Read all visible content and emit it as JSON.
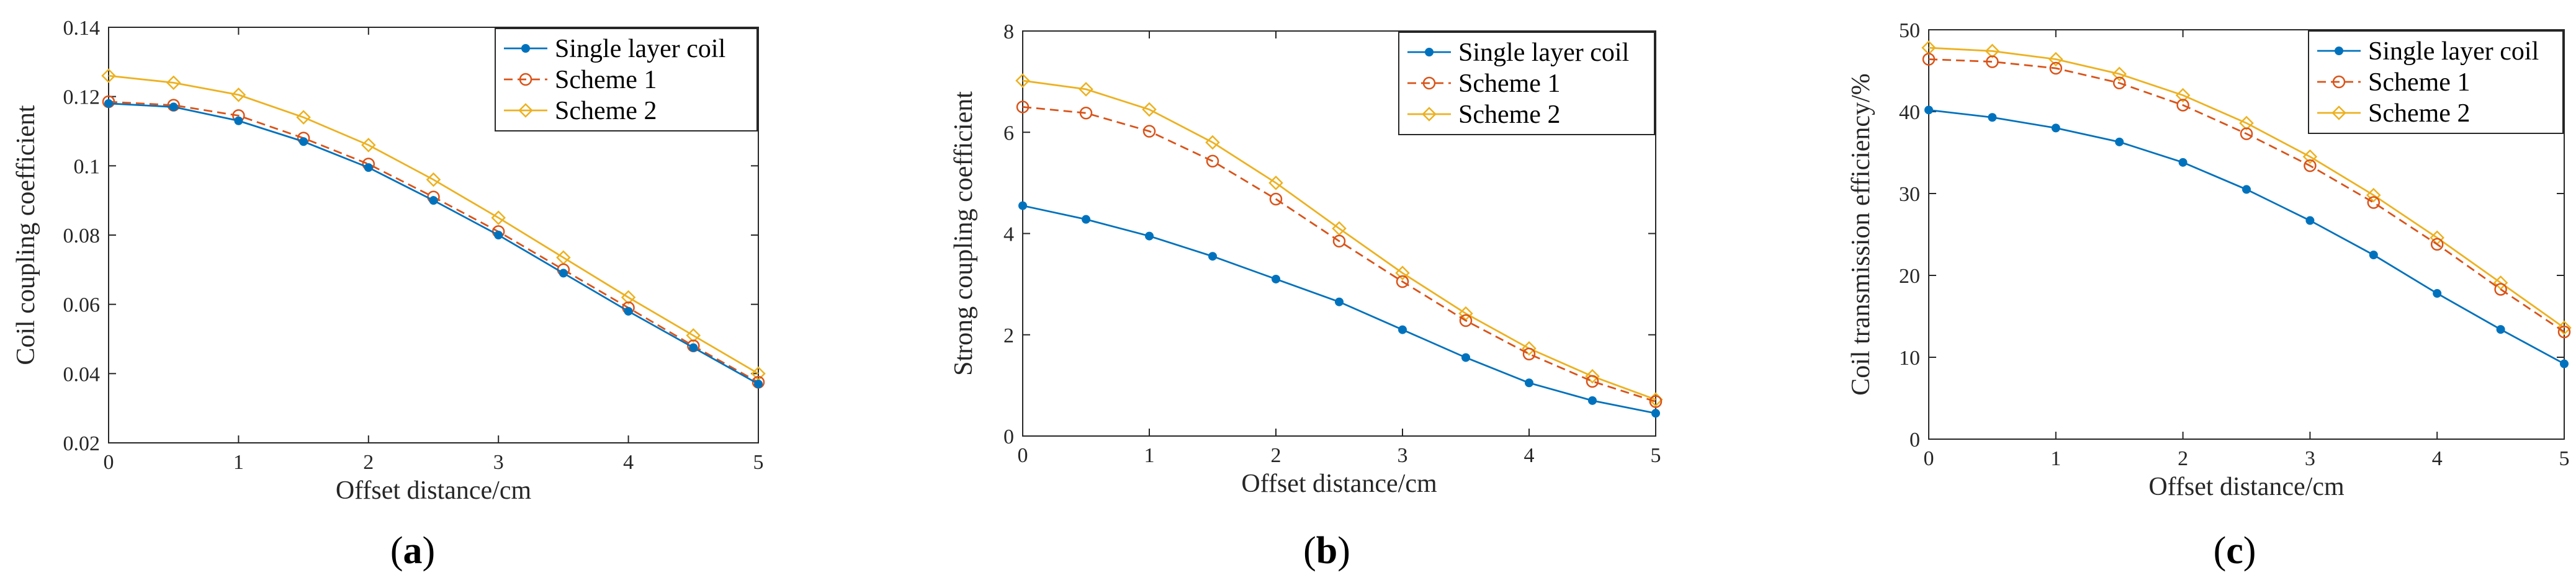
{
  "chart_data": [
    {
      "type": "line",
      "panel_label": "a",
      "xlabel": "Offset distance/cm",
      "ylabel": "Coil coupling coefficient",
      "xlim": [
        0,
        5
      ],
      "ylim": [
        0.02,
        0.14
      ],
      "xticks": [
        0,
        1,
        2,
        3,
        4,
        5
      ],
      "yticks": [
        0.02,
        0.04,
        0.06,
        0.08,
        0.1,
        0.12,
        0.14
      ],
      "ytick_labels": [
        "0.02",
        "0.04",
        "0.06",
        "0.08",
        "0.1",
        "0.12",
        "0.14"
      ],
      "legend_position": "top-right",
      "x": [
        0,
        0.5,
        1,
        1.5,
        2,
        2.5,
        3,
        3.5,
        4,
        4.5,
        5
      ],
      "series": [
        {
          "name": "Single layer coil",
          "style": "solid",
          "marker": "dot",
          "color": "#0072BD",
          "values": [
            0.118,
            0.117,
            0.113,
            0.107,
            0.0995,
            0.09,
            0.08,
            0.069,
            0.058,
            0.0475,
            0.037
          ]
        },
        {
          "name": "Scheme 1",
          "style": "dashed",
          "marker": "circle",
          "color": "#D95319",
          "values": [
            0.1185,
            0.1175,
            0.1145,
            0.108,
            0.1005,
            0.091,
            0.081,
            0.07,
            0.059,
            0.048,
            0.0375
          ]
        },
        {
          "name": "Scheme 2",
          "style": "solid",
          "marker": "diamond",
          "color": "#EDB120",
          "values": [
            0.126,
            0.124,
            0.1205,
            0.114,
            0.106,
            0.096,
            0.085,
            0.0735,
            0.062,
            0.051,
            0.04
          ]
        }
      ]
    },
    {
      "type": "line",
      "panel_label": "b",
      "xlabel": "Offset distance/cm",
      "ylabel": "Strong coupling coefficient",
      "xlim": [
        0,
        5
      ],
      "ylim": [
        0,
        8
      ],
      "xticks": [
        0,
        1,
        2,
        3,
        4,
        5
      ],
      "yticks": [
        0,
        2,
        4,
        6,
        8
      ],
      "ytick_labels": [
        "0",
        "2",
        "4",
        "6",
        "8"
      ],
      "legend_position": "top-right",
      "x": [
        0,
        0.5,
        1,
        1.5,
        2,
        2.5,
        3,
        3.5,
        4,
        4.5,
        5
      ],
      "series": [
        {
          "name": "Single layer coil",
          "style": "solid",
          "marker": "dot",
          "color": "#0072BD",
          "values": [
            4.55,
            4.28,
            3.95,
            3.55,
            3.1,
            2.65,
            2.1,
            1.55,
            1.05,
            0.7,
            0.45
          ]
        },
        {
          "name": "Scheme 1",
          "style": "dashed",
          "marker": "circle",
          "color": "#D95319",
          "values": [
            6.5,
            6.38,
            6.02,
            5.43,
            4.68,
            3.85,
            3.05,
            2.28,
            1.62,
            1.08,
            0.68
          ]
        },
        {
          "name": "Scheme 2",
          "style": "solid",
          "marker": "diamond",
          "color": "#EDB120",
          "values": [
            7.02,
            6.85,
            6.45,
            5.8,
            5.0,
            4.1,
            3.22,
            2.42,
            1.73,
            1.18,
            0.72
          ]
        }
      ]
    },
    {
      "type": "line",
      "panel_label": "c",
      "xlabel": "Offset distance/cm",
      "ylabel": "Coil transmission efficiency/%",
      "xlim": [
        0,
        5
      ],
      "ylim": [
        0,
        50
      ],
      "xticks": [
        0,
        1,
        2,
        3,
        4,
        5
      ],
      "yticks": [
        0,
        10,
        20,
        30,
        40,
        50
      ],
      "ytick_labels": [
        "0",
        "10",
        "20",
        "30",
        "40",
        "50"
      ],
      "legend_position": "top-right",
      "x": [
        0,
        0.5,
        1,
        1.5,
        2,
        2.5,
        3,
        3.5,
        4,
        4.5,
        5
      ],
      "series": [
        {
          "name": "Single layer coil",
          "style": "solid",
          "marker": "dot",
          "color": "#0072BD",
          "values": [
            40.2,
            39.3,
            38.0,
            36.3,
            33.8,
            30.5,
            26.7,
            22.5,
            17.8,
            13.4,
            9.2
          ]
        },
        {
          "name": "Scheme 1",
          "style": "dashed",
          "marker": "circle",
          "color": "#D95319",
          "values": [
            46.4,
            46.1,
            45.3,
            43.5,
            40.8,
            37.3,
            33.4,
            28.9,
            23.8,
            18.3,
            13.1
          ]
        },
        {
          "name": "Scheme 2",
          "style": "solid",
          "marker": "diamond",
          "color": "#EDB120",
          "values": [
            47.8,
            47.4,
            46.4,
            44.6,
            42.0,
            38.6,
            34.5,
            29.8,
            24.6,
            19.1,
            13.6
          ]
        }
      ]
    }
  ]
}
